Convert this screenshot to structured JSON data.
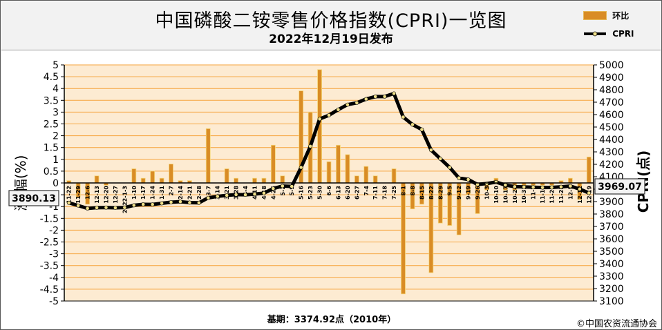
{
  "title": "中国磷酸二铵零售价格指数(CPRI)一览图",
  "date": "2022年12月19日发布",
  "legend": {
    "bar_label": "环比",
    "line_label": "CPRI"
  },
  "footer": {
    "base_period": "基期：3374.92点（2010年）",
    "copyright": "©中国农资流通协会"
  },
  "callouts": {
    "first": "3890.13",
    "last": "3969.07"
  },
  "colors": {
    "plot_bg": "#fdebd2",
    "gridline": "#f6a33b",
    "bar": "#d98c25",
    "bar_edge": "#f5d77a",
    "line": "#000000",
    "marker": "#f0e08a"
  },
  "chart_data": {
    "type": "bar+line",
    "ylabel_left": "涨  幅(%)",
    "ylabel_right": "CPRI(点)",
    "y_left": {
      "min": -5,
      "max": 5,
      "step": 0.5
    },
    "y_right": {
      "min": 3100,
      "max": 5000,
      "step": 100
    },
    "categories": [
      "11-22",
      "11-29",
      "12-6",
      "12-13",
      "12-20",
      "12-27",
      "2022-1-3",
      "1-10",
      "1-17",
      "1-24",
      "1-31",
      "2-7",
      "2-14",
      "2-21",
      "2-28",
      "3-7",
      "3-14",
      "3-21",
      "3-28",
      "4-4",
      "4-11",
      "4-18",
      "4-25",
      "5-2",
      "5-9",
      "5-16",
      "5-23",
      "5-30",
      "6-6",
      "6-13",
      "6-20",
      "6-27",
      "7-4",
      "7-11",
      "7-18",
      "7-25",
      "8-1",
      "8-8",
      "8-15",
      "8-22",
      "8-29",
      "9-5",
      "9-12",
      "9-19",
      "9-26",
      "10-3",
      "10-10",
      "10-17",
      "10-24",
      "10-31",
      "11-7",
      "11-14",
      "11-21",
      "11-28",
      "12-5",
      "12-12",
      "12-19"
    ],
    "tick_labels": [
      "11-22",
      "11-29",
      "12-6",
      "12-13",
      "12-20",
      "12-27",
      "2022-1-3",
      "1-10",
      "1-17",
      "1-24",
      "1-31",
      "2-7",
      "2-14",
      "2-21",
      "2-28",
      "3-7",
      "3-14",
      "3-21",
      "3-28",
      "4-4",
      "4-11",
      "4-18",
      "4-25",
      "5-2",
      "5-9",
      "5-16",
      "5-23",
      "5-30",
      "6-6",
      "6-13",
      "6-20",
      "6-27",
      "7-4",
      "7-11",
      "7-18",
      "7-25",
      "8-1",
      "8-8",
      "8-15",
      "8-22",
      "8-29",
      "9-5",
      "9-12",
      "9-19",
      "9-26",
      "10-3",
      "10-10",
      "10-17",
      "10-24",
      "10-31",
      "11-7",
      "11-14",
      "11-21",
      "11-28",
      "12-5",
      "12-12",
      "12-19"
    ],
    "series": [
      {
        "name": "环比",
        "type": "bar",
        "axis": "left",
        "values": [
          0.1,
          -0.6,
          -0.9,
          0.3,
          -0.1,
          0,
          0,
          0.6,
          0.2,
          0.5,
          0.2,
          0.8,
          0.1,
          0.1,
          0,
          2.3,
          0,
          0.6,
          0.2,
          0,
          0.2,
          0.2,
          1.6,
          0.3,
          0,
          3.9,
          3,
          4.8,
          0.9,
          1.6,
          1.2,
          0.3,
          0.7,
          0.3,
          0,
          0.6,
          -4.7,
          -1.1,
          -0.9,
          -3.8,
          -1.7,
          -1.8,
          -2.2,
          -0.5,
          -1.3,
          -0.3,
          0.2,
          -0.3,
          -0.3,
          -0.1,
          -0.1,
          -0.1,
          -0.1,
          0.1,
          0.2,
          -0.7,
          1.1
        ]
      },
      {
        "name": "CPRI",
        "type": "line",
        "axis": "right",
        "values": [
          3890.13,
          3868,
          3845,
          3851,
          3852,
          3850,
          3852,
          3870,
          3878,
          3877,
          3886,
          3895,
          3899,
          3892,
          3890,
          3930,
          3942,
          3950,
          3956,
          3955,
          3960,
          3968,
          4005,
          4025,
          4022,
          4175,
          4345,
          4565,
          4595,
          4640,
          4680,
          4695,
          4725,
          4745,
          4745,
          4770,
          4580,
          4520,
          4480,
          4315,
          4245,
          4175,
          4090,
          4078,
          4038,
          4045,
          4057,
          4033,
          4020,
          4018,
          4015,
          4013,
          4014,
          4019,
          4025,
          4001,
          3969.07
        ]
      }
    ]
  }
}
